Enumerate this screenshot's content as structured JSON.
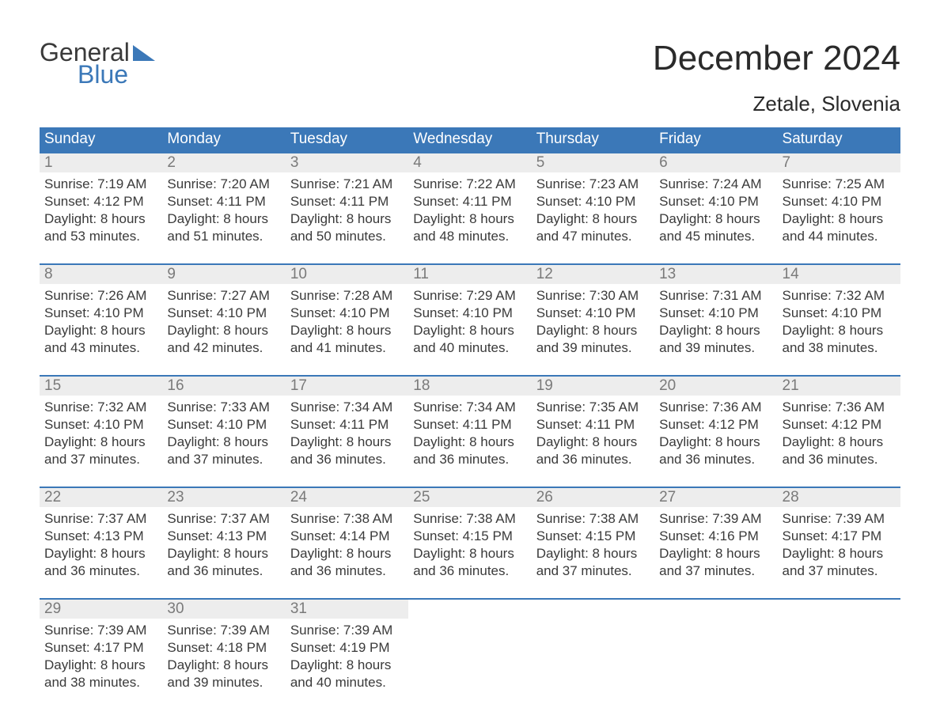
{
  "logo": {
    "word1": "General",
    "word2": "Blue",
    "tri_color": "#3b78b8"
  },
  "title": "December 2024",
  "subtitle": "Zetale, Slovenia",
  "colors": {
    "header_bg": "#3b78b8",
    "header_text": "#ffffff",
    "row_accent": "#3b78b8",
    "daynum_bg": "#ededed",
    "daynum_text": "#7a7a7a",
    "body_text": "#3a3a3a",
    "page_bg": "#ffffff"
  },
  "typography": {
    "title_fontsize": 44,
    "subtitle_fontsize": 26,
    "header_fontsize": 19,
    "daynum_fontsize": 19,
    "body_fontsize": 17
  },
  "layout": {
    "columns": 7,
    "rows": 5
  },
  "weekdays": [
    "Sunday",
    "Monday",
    "Tuesday",
    "Wednesday",
    "Thursday",
    "Friday",
    "Saturday"
  ],
  "weeks": [
    [
      {
        "n": "1",
        "sunrise": "Sunrise: 7:19 AM",
        "sunset": "Sunset: 4:12 PM",
        "d1": "Daylight: 8 hours",
        "d2": "and 53 minutes."
      },
      {
        "n": "2",
        "sunrise": "Sunrise: 7:20 AM",
        "sunset": "Sunset: 4:11 PM",
        "d1": "Daylight: 8 hours",
        "d2": "and 51 minutes."
      },
      {
        "n": "3",
        "sunrise": "Sunrise: 7:21 AM",
        "sunset": "Sunset: 4:11 PM",
        "d1": "Daylight: 8 hours",
        "d2": "and 50 minutes."
      },
      {
        "n": "4",
        "sunrise": "Sunrise: 7:22 AM",
        "sunset": "Sunset: 4:11 PM",
        "d1": "Daylight: 8 hours",
        "d2": "and 48 minutes."
      },
      {
        "n": "5",
        "sunrise": "Sunrise: 7:23 AM",
        "sunset": "Sunset: 4:10 PM",
        "d1": "Daylight: 8 hours",
        "d2": "and 47 minutes."
      },
      {
        "n": "6",
        "sunrise": "Sunrise: 7:24 AM",
        "sunset": "Sunset: 4:10 PM",
        "d1": "Daylight: 8 hours",
        "d2": "and 45 minutes."
      },
      {
        "n": "7",
        "sunrise": "Sunrise: 7:25 AM",
        "sunset": "Sunset: 4:10 PM",
        "d1": "Daylight: 8 hours",
        "d2": "and 44 minutes."
      }
    ],
    [
      {
        "n": "8",
        "sunrise": "Sunrise: 7:26 AM",
        "sunset": "Sunset: 4:10 PM",
        "d1": "Daylight: 8 hours",
        "d2": "and 43 minutes."
      },
      {
        "n": "9",
        "sunrise": "Sunrise: 7:27 AM",
        "sunset": "Sunset: 4:10 PM",
        "d1": "Daylight: 8 hours",
        "d2": "and 42 minutes."
      },
      {
        "n": "10",
        "sunrise": "Sunrise: 7:28 AM",
        "sunset": "Sunset: 4:10 PM",
        "d1": "Daylight: 8 hours",
        "d2": "and 41 minutes."
      },
      {
        "n": "11",
        "sunrise": "Sunrise: 7:29 AM",
        "sunset": "Sunset: 4:10 PM",
        "d1": "Daylight: 8 hours",
        "d2": "and 40 minutes."
      },
      {
        "n": "12",
        "sunrise": "Sunrise: 7:30 AM",
        "sunset": "Sunset: 4:10 PM",
        "d1": "Daylight: 8 hours",
        "d2": "and 39 minutes."
      },
      {
        "n": "13",
        "sunrise": "Sunrise: 7:31 AM",
        "sunset": "Sunset: 4:10 PM",
        "d1": "Daylight: 8 hours",
        "d2": "and 39 minutes."
      },
      {
        "n": "14",
        "sunrise": "Sunrise: 7:32 AM",
        "sunset": "Sunset: 4:10 PM",
        "d1": "Daylight: 8 hours",
        "d2": "and 38 minutes."
      }
    ],
    [
      {
        "n": "15",
        "sunrise": "Sunrise: 7:32 AM",
        "sunset": "Sunset: 4:10 PM",
        "d1": "Daylight: 8 hours",
        "d2": "and 37 minutes."
      },
      {
        "n": "16",
        "sunrise": "Sunrise: 7:33 AM",
        "sunset": "Sunset: 4:10 PM",
        "d1": "Daylight: 8 hours",
        "d2": "and 37 minutes."
      },
      {
        "n": "17",
        "sunrise": "Sunrise: 7:34 AM",
        "sunset": "Sunset: 4:11 PM",
        "d1": "Daylight: 8 hours",
        "d2": "and 36 minutes."
      },
      {
        "n": "18",
        "sunrise": "Sunrise: 7:34 AM",
        "sunset": "Sunset: 4:11 PM",
        "d1": "Daylight: 8 hours",
        "d2": "and 36 minutes."
      },
      {
        "n": "19",
        "sunrise": "Sunrise: 7:35 AM",
        "sunset": "Sunset: 4:11 PM",
        "d1": "Daylight: 8 hours",
        "d2": "and 36 minutes."
      },
      {
        "n": "20",
        "sunrise": "Sunrise: 7:36 AM",
        "sunset": "Sunset: 4:12 PM",
        "d1": "Daylight: 8 hours",
        "d2": "and 36 minutes."
      },
      {
        "n": "21",
        "sunrise": "Sunrise: 7:36 AM",
        "sunset": "Sunset: 4:12 PM",
        "d1": "Daylight: 8 hours",
        "d2": "and 36 minutes."
      }
    ],
    [
      {
        "n": "22",
        "sunrise": "Sunrise: 7:37 AM",
        "sunset": "Sunset: 4:13 PM",
        "d1": "Daylight: 8 hours",
        "d2": "and 36 minutes."
      },
      {
        "n": "23",
        "sunrise": "Sunrise: 7:37 AM",
        "sunset": "Sunset: 4:13 PM",
        "d1": "Daylight: 8 hours",
        "d2": "and 36 minutes."
      },
      {
        "n": "24",
        "sunrise": "Sunrise: 7:38 AM",
        "sunset": "Sunset: 4:14 PM",
        "d1": "Daylight: 8 hours",
        "d2": "and 36 minutes."
      },
      {
        "n": "25",
        "sunrise": "Sunrise: 7:38 AM",
        "sunset": "Sunset: 4:15 PM",
        "d1": "Daylight: 8 hours",
        "d2": "and 36 minutes."
      },
      {
        "n": "26",
        "sunrise": "Sunrise: 7:38 AM",
        "sunset": "Sunset: 4:15 PM",
        "d1": "Daylight: 8 hours",
        "d2": "and 37 minutes."
      },
      {
        "n": "27",
        "sunrise": "Sunrise: 7:39 AM",
        "sunset": "Sunset: 4:16 PM",
        "d1": "Daylight: 8 hours",
        "d2": "and 37 minutes."
      },
      {
        "n": "28",
        "sunrise": "Sunrise: 7:39 AM",
        "sunset": "Sunset: 4:17 PM",
        "d1": "Daylight: 8 hours",
        "d2": "and 37 minutes."
      }
    ],
    [
      {
        "n": "29",
        "sunrise": "Sunrise: 7:39 AM",
        "sunset": "Sunset: 4:17 PM",
        "d1": "Daylight: 8 hours",
        "d2": "and 38 minutes."
      },
      {
        "n": "30",
        "sunrise": "Sunrise: 7:39 AM",
        "sunset": "Sunset: 4:18 PM",
        "d1": "Daylight: 8 hours",
        "d2": "and 39 minutes."
      },
      {
        "n": "31",
        "sunrise": "Sunrise: 7:39 AM",
        "sunset": "Sunset: 4:19 PM",
        "d1": "Daylight: 8 hours",
        "d2": "and 40 minutes."
      },
      {
        "empty": true
      },
      {
        "empty": true
      },
      {
        "empty": true
      },
      {
        "empty": true
      }
    ]
  ]
}
